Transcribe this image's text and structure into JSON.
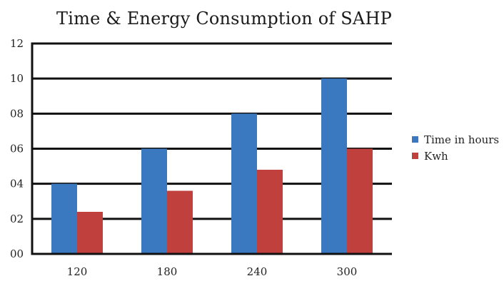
{
  "chart_data": {
    "type": "bar",
    "title": "Time & Energy Consumption of SAHP",
    "xlabel": "",
    "ylabel": "",
    "categories": [
      "120",
      "180",
      "240",
      "300"
    ],
    "series": [
      {
        "name": "Time in hours",
        "values": [
          4,
          6,
          8,
          10
        ],
        "color": "#3a78bf"
      },
      {
        "name": "Kwh",
        "values": [
          2.4,
          3.6,
          4.8,
          6.0
        ],
        "color": "#c0403d"
      }
    ],
    "ylim": [
      0,
      12
    ],
    "yticks": [
      0,
      2,
      4,
      6,
      8,
      10,
      12
    ],
    "ytick_labels": [
      "00",
      "02",
      "04",
      "06",
      "08",
      "10",
      "12"
    ],
    "grid": true,
    "legend_position": "right"
  }
}
